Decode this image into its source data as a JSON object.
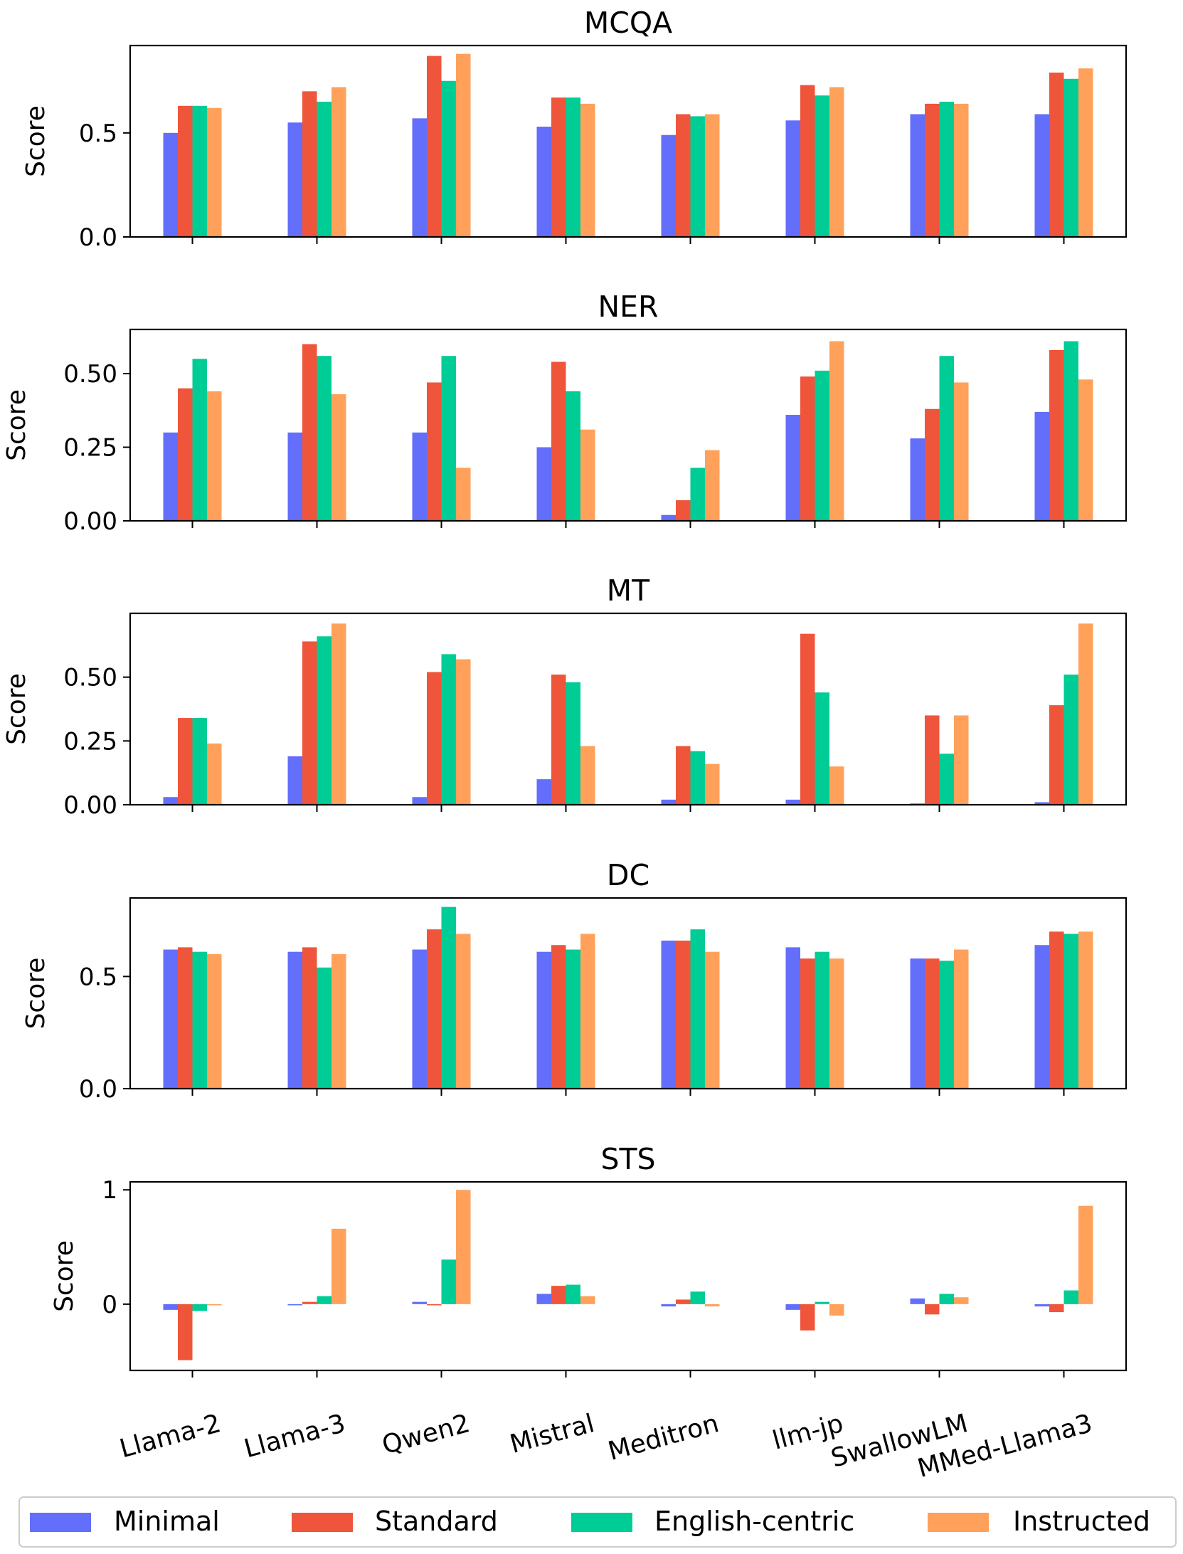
{
  "chart_data": [
    {
      "type": "bar",
      "title": "MCQA",
      "ylabel": "Score",
      "xlabel": "",
      "ylim": [
        0,
        0.92
      ],
      "yticks": [
        0.0,
        0.5
      ],
      "ytick_labels": [
        "0.0",
        "0.5"
      ],
      "categories": [
        "Llama-2",
        "Llama-3",
        "Qwen2",
        "Mistral",
        "Meditron",
        "llm-jp",
        "SwallowLM",
        "MMed-Llama3"
      ],
      "series": [
        {
          "name": "Minimal",
          "values": [
            0.5,
            0.55,
            0.57,
            0.53,
            0.49,
            0.56,
            0.59,
            0.59
          ]
        },
        {
          "name": "Standard",
          "values": [
            0.63,
            0.7,
            0.87,
            0.67,
            0.59,
            0.73,
            0.64,
            0.79
          ]
        },
        {
          "name": "English-centric",
          "values": [
            0.63,
            0.65,
            0.75,
            0.67,
            0.58,
            0.68,
            0.65,
            0.76
          ]
        },
        {
          "name": "Instructed",
          "values": [
            0.62,
            0.72,
            0.88,
            0.64,
            0.59,
            0.72,
            0.64,
            0.81
          ]
        }
      ]
    },
    {
      "type": "bar",
      "title": "NER",
      "ylabel": "Score",
      "xlabel": "",
      "ylim": [
        0,
        0.65
      ],
      "yticks": [
        0.0,
        0.25,
        0.5
      ],
      "ytick_labels": [
        "0.00",
        "0.25",
        "0.50"
      ],
      "categories": [
        "Llama-2",
        "Llama-3",
        "Qwen2",
        "Mistral",
        "Meditron",
        "llm-jp",
        "SwallowLM",
        "MMed-Llama3"
      ],
      "series": [
        {
          "name": "Minimal",
          "values": [
            0.3,
            0.3,
            0.3,
            0.25,
            0.02,
            0.36,
            0.28,
            0.37
          ]
        },
        {
          "name": "Standard",
          "values": [
            0.45,
            0.6,
            0.47,
            0.54,
            0.07,
            0.49,
            0.38,
            0.58
          ]
        },
        {
          "name": "English-centric",
          "values": [
            0.55,
            0.56,
            0.56,
            0.44,
            0.18,
            0.51,
            0.56,
            0.61
          ]
        },
        {
          "name": "Instructed",
          "values": [
            0.44,
            0.43,
            0.18,
            0.31,
            0.24,
            0.61,
            0.47,
            0.48
          ]
        }
      ]
    },
    {
      "type": "bar",
      "title": "MT",
      "ylabel": "Score",
      "xlabel": "",
      "ylim": [
        0,
        0.75
      ],
      "yticks": [
        0.0,
        0.25,
        0.5
      ],
      "ytick_labels": [
        "0.00",
        "0.25",
        "0.50"
      ],
      "categories": [
        "Llama-2",
        "Llama-3",
        "Qwen2",
        "Mistral",
        "Meditron",
        "llm-jp",
        "SwallowLM",
        "MMed-Llama3"
      ],
      "series": [
        {
          "name": "Minimal",
          "values": [
            0.03,
            0.19,
            0.03,
            0.1,
            0.02,
            0.02,
            0.005,
            0.01
          ]
        },
        {
          "name": "Standard",
          "values": [
            0.34,
            0.64,
            0.52,
            0.51,
            0.23,
            0.67,
            0.35,
            0.39
          ]
        },
        {
          "name": "English-centric",
          "values": [
            0.34,
            0.66,
            0.59,
            0.48,
            0.21,
            0.44,
            0.2,
            0.51
          ]
        },
        {
          "name": "Instructed",
          "values": [
            0.24,
            0.71,
            0.57,
            0.23,
            0.16,
            0.15,
            0.35,
            0.71
          ]
        }
      ]
    },
    {
      "type": "bar",
      "title": "DC",
      "ylabel": "Score",
      "xlabel": "",
      "ylim": [
        0,
        0.85
      ],
      "yticks": [
        0.0,
        0.5
      ],
      "ytick_labels": [
        "0.0",
        "0.5"
      ],
      "categories": [
        "Llama-2",
        "Llama-3",
        "Qwen2",
        "Mistral",
        "Meditron",
        "llm-jp",
        "SwallowLM",
        "MMed-Llama3"
      ],
      "series": [
        {
          "name": "Minimal",
          "values": [
            0.62,
            0.61,
            0.62,
            0.61,
            0.66,
            0.63,
            0.58,
            0.64
          ]
        },
        {
          "name": "Standard",
          "values": [
            0.63,
            0.63,
            0.71,
            0.64,
            0.66,
            0.58,
            0.58,
            0.7
          ]
        },
        {
          "name": "English-centric",
          "values": [
            0.61,
            0.54,
            0.81,
            0.62,
            0.71,
            0.61,
            0.57,
            0.69
          ]
        },
        {
          "name": "Instructed",
          "values": [
            0.6,
            0.6,
            0.69,
            0.69,
            0.61,
            0.58,
            0.62,
            0.7
          ]
        }
      ]
    },
    {
      "type": "bar",
      "title": "STS",
      "ylabel": "Score",
      "xlabel": "",
      "ylim": [
        -0.58,
        1.07
      ],
      "yticks": [
        0,
        1
      ],
      "ytick_labels": [
        "0",
        "1"
      ],
      "categories": [
        "Llama-2",
        "Llama-3",
        "Qwen2",
        "Mistral",
        "Meditron",
        "llm-jp",
        "SwallowLM",
        "MMed-Llama3"
      ],
      "series": [
        {
          "name": "Minimal",
          "values": [
            -0.05,
            -0.01,
            0.02,
            0.09,
            -0.02,
            -0.05,
            0.05,
            -0.02
          ]
        },
        {
          "name": "Standard",
          "values": [
            -0.49,
            0.02,
            -0.01,
            0.16,
            0.04,
            -0.23,
            -0.09,
            -0.07
          ]
        },
        {
          "name": "English-centric",
          "values": [
            -0.06,
            0.07,
            0.39,
            0.17,
            0.11,
            0.02,
            0.09,
            0.12
          ]
        },
        {
          "name": "Instructed",
          "values": [
            -0.01,
            0.66,
            1.0,
            0.07,
            -0.02,
            -0.1,
            0.06,
            0.86
          ]
        }
      ]
    }
  ],
  "legend": [
    {
      "label": "Minimal",
      "color": "#636efa"
    },
    {
      "label": "Standard",
      "color": "#ef553b"
    },
    {
      "label": "English-centric",
      "color": "#00cc96"
    },
    {
      "label": "Instructed",
      "color": "#ffa15a"
    }
  ]
}
